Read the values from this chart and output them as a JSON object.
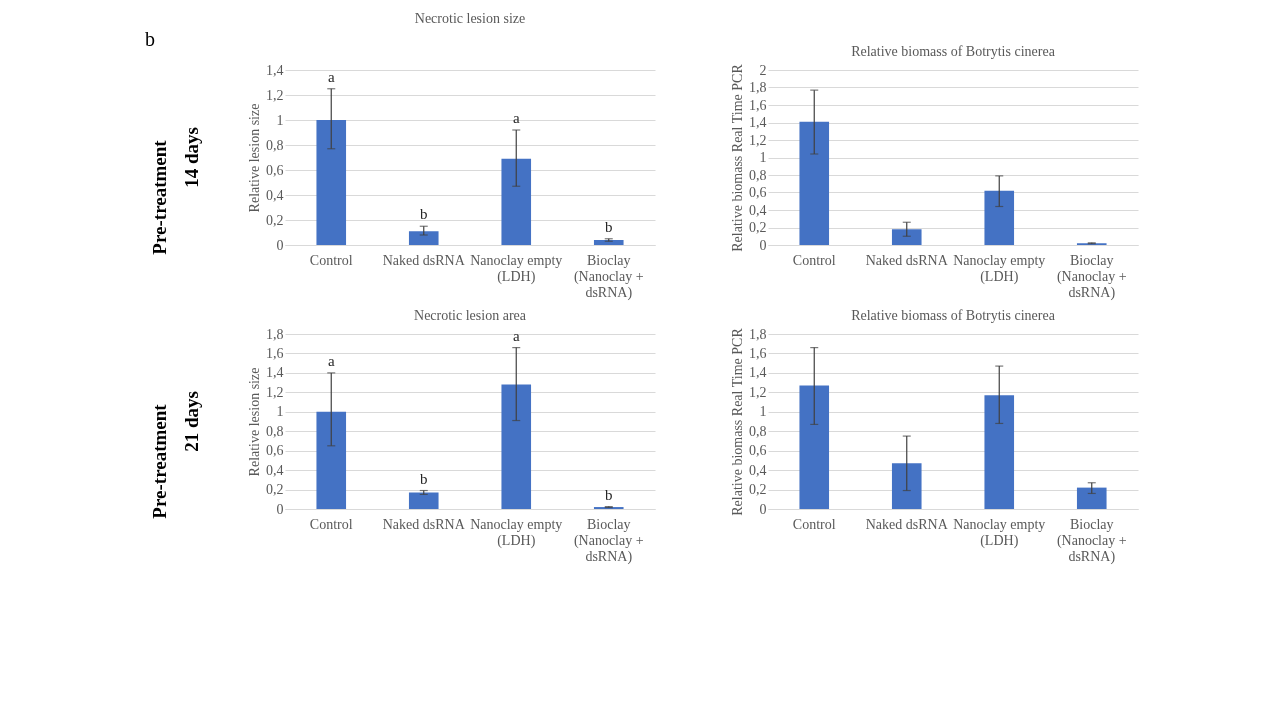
{
  "chart_data": [
    {
      "type": "bar",
      "title": "Necrotic lesion size",
      "ylabel": "Relative lesion size",
      "categories": [
        "Control",
        "Naked dsRNA",
        "Nanoclay empty (LDH)",
        "Bioclay (Nanoclay + dsRNA)"
      ],
      "series": [
        {
          "color": "#4472c4",
          "values": [
            1.0,
            0.11,
            0.69,
            0.04
          ],
          "errors": [
            [
              0.77,
              1.25
            ],
            [
              0.08,
              0.15
            ],
            [
              0.47,
              0.92
            ],
            [
              0.03,
              0.05
            ]
          ]
        }
      ],
      "ylim": [
        0,
        1.4
      ],
      "yticks": [
        0,
        {
          "value": 0.2,
          "label": "0,2"
        },
        {
          "value": 0.4,
          "label": "0,4"
        },
        {
          "value": 0.6,
          "label": "0,6"
        },
        {
          "value": 0.8,
          "label": "0,8"
        },
        1,
        {
          "value": 1.2,
          "label": "1,2"
        },
        {
          "value": 1.4,
          "label": "1,4"
        }
      ],
      "grid": "y",
      "annotations": [
        "Pre-treatment",
        "14 days",
        "b",
        {
          "text": "a",
          "x": "Control",
          "y": 1.25
        },
        {
          "text": "b",
          "x": "Naked dsRNA",
          "y": 0.15
        },
        {
          "text": "a",
          "x": "Nanoclay empty (LDH)",
          "y": 0.92
        },
        {
          "text": "b",
          "x": "Bioclay (Nanoclay + dsRNA)",
          "y": 0.05
        }
      ]
    },
    {
      "type": "bar",
      "title": "Relative biomass of Botrytis cinerea",
      "ylabel": "Relative biomass Real Time PCR",
      "categories": [
        "Control",
        "Naked dsRNA",
        "Nanoclay empty (LDH)",
        "Bioclay (Nanoclay + dsRNA)"
      ],
      "series": [
        {
          "color": "#4472c4",
          "values": [
            1.41,
            0.18,
            0.62,
            0.02
          ],
          "errors": [
            [
              1.04,
              1.77
            ],
            [
              0.1,
              0.26
            ],
            [
              0.44,
              0.79
            ],
            [
              0.015,
              0.025
            ]
          ]
        }
      ],
      "ylim": [
        0,
        2
      ],
      "yticks": [
        0,
        {
          "value": 0.2,
          "label": "0,2"
        },
        {
          "value": 0.4,
          "label": "0,4"
        },
        {
          "value": 0.6,
          "label": "0,6"
        },
        {
          "value": 0.8,
          "label": "0,8"
        },
        1,
        {
          "value": 1.2,
          "label": "1,2"
        },
        {
          "value": 1.4,
          "label": "1,4"
        },
        {
          "value": 1.6,
          "label": "1,6"
        },
        {
          "value": 1.8,
          "label": "1,8"
        },
        2
      ],
      "grid": "y"
    },
    {
      "type": "bar",
      "title": "Necrotic lesion area",
      "ylabel": "Relative lesion size",
      "categories": [
        "Control",
        "Naked dsRNA",
        "Nanoclay empty (LDH)",
        "Bioclay (Nanoclay + dsRNA)"
      ],
      "series": [
        {
          "color": "#4472c4",
          "values": [
            1.0,
            0.17,
            1.28,
            0.02
          ],
          "errors": [
            [
              0.65,
              1.4
            ],
            [
              0.15,
              0.19
            ],
            [
              0.91,
              1.66
            ],
            [
              0.015,
              0.025
            ]
          ]
        }
      ],
      "ylim": [
        0,
        1.8
      ],
      "yticks": [
        0,
        {
          "value": 0.2,
          "label": "0,2"
        },
        {
          "value": 0.4,
          "label": "0,4"
        },
        {
          "value": 0.6,
          "label": "0,6"
        },
        {
          "value": 0.8,
          "label": "0,8"
        },
        1,
        {
          "value": 1.2,
          "label": "1,2"
        },
        {
          "value": 1.4,
          "label": "1,4"
        },
        {
          "value": 1.6,
          "label": "1,6"
        },
        {
          "value": 1.8,
          "label": "1,8"
        }
      ],
      "grid": "y",
      "annotations": [
        "Pre-treatment",
        "21 days",
        {
          "text": "a",
          "x": "Control",
          "y": 1.4
        },
        {
          "text": "b",
          "x": "Naked dsRNA",
          "y": 0.19
        },
        {
          "text": "a",
          "x": "Nanoclay empty (LDH)",
          "y": 1.66
        },
        {
          "text": "b",
          "x": "Bioclay (Nanoclay + dsRNA)",
          "y": 0.025
        }
      ]
    },
    {
      "type": "bar",
      "title": "Relative biomass of Botrytis cinerea",
      "ylabel": "Relative biomass Real Time PCR",
      "categories": [
        "Control",
        "Naked dsRNA",
        "Nanoclay empty (LDH)",
        "Bioclay (Nanoclay + dsRNA)"
      ],
      "series": [
        {
          "color": "#4472c4",
          "values": [
            1.27,
            0.47,
            1.17,
            0.22
          ],
          "errors": [
            [
              0.87,
              1.66
            ],
            [
              0.19,
              0.75
            ],
            [
              0.88,
              1.47
            ],
            [
              0.16,
              0.27
            ]
          ]
        }
      ],
      "ylim": [
        0,
        1.8
      ],
      "yticks": [
        0,
        {
          "value": 0.2,
          "label": "0,2"
        },
        {
          "value": 0.4,
          "label": "0,4"
        },
        {
          "value": 0.6,
          "label": "0,6"
        },
        {
          "value": 0.8,
          "label": "0,8"
        },
        1,
        {
          "value": 1.2,
          "label": "1,2"
        },
        {
          "value": 1.4,
          "label": "1,4"
        },
        {
          "value": 1.6,
          "label": "1,6"
        },
        {
          "value": 1.8,
          "label": "1,8"
        }
      ],
      "grid": "y"
    }
  ]
}
